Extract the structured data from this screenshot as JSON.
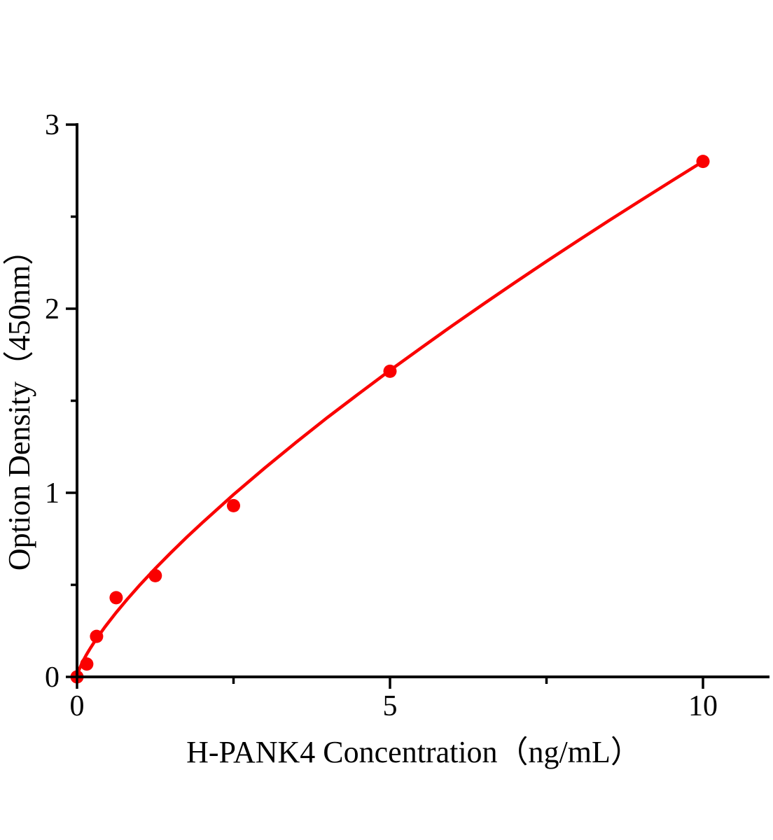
{
  "page": {
    "background_color": "#ffffff",
    "text_color": "#000000"
  },
  "chart_data": {
    "type": "scatter",
    "title": "",
    "xlabel": "H-PANK4 Concentration（ng/mL）",
    "ylabel": "Option Density（450nm）",
    "grid": false,
    "legend": false,
    "x_axis": {
      "lim": [
        0,
        11.06
      ],
      "major_ticks": [
        {
          "value": 0,
          "label": "0"
        },
        {
          "value": 5,
          "label": "5"
        },
        {
          "value": 10,
          "label": "10"
        }
      ],
      "minor_ticks": [
        2.5,
        7.5
      ]
    },
    "y_axis": {
      "lim": [
        0,
        3
      ],
      "major_ticks": [
        {
          "value": 0,
          "label": "0"
        },
        {
          "value": 1,
          "label": "1"
        },
        {
          "value": 2,
          "label": "2"
        },
        {
          "value": 3,
          "label": "3"
        }
      ],
      "minor_ticks": [
        0.5,
        1.5,
        2.5
      ]
    },
    "axis_color": "#000000",
    "series": [
      {
        "color": "#fa0000",
        "marker": "circle",
        "points": [
          [
            0,
            0.0
          ],
          [
            0.156,
            0.07
          ],
          [
            0.312,
            0.22
          ],
          [
            0.625,
            0.43
          ],
          [
            1.25,
            0.55
          ],
          [
            2.5,
            0.93
          ],
          [
            5,
            1.66
          ],
          [
            10,
            2.8
          ]
        ],
        "fit_curve": [
          [
            0,
            0
          ],
          [
            0.01,
            0.016
          ],
          [
            0.02,
            0.027
          ],
          [
            0.03,
            0.036
          ],
          [
            0.05,
            0.053
          ],
          [
            0.07,
            0.068
          ],
          [
            0.1,
            0.089
          ],
          [
            0.15,
            0.12
          ],
          [
            0.2,
            0.149
          ],
          [
            0.3,
            0.202
          ],
          [
            0.45,
            0.273
          ],
          [
            0.625,
            0.35
          ],
          [
            0.8,
            0.421
          ],
          [
            1.0,
            0.498
          ],
          [
            1.25,
            0.589
          ],
          [
            1.5,
            0.675
          ],
          [
            1.75,
            0.758
          ],
          [
            2.0,
            0.837
          ],
          [
            2.5,
            0.99
          ],
          [
            3.0,
            1.135
          ],
          [
            3.5,
            1.274
          ],
          [
            4.0,
            1.409
          ],
          [
            4.5,
            1.538
          ],
          [
            5.0,
            1.665
          ],
          [
            5.5,
            1.788
          ],
          [
            6.0,
            1.909
          ],
          [
            6.5,
            2.027
          ],
          [
            7.0,
            2.143
          ],
          [
            7.5,
            2.257
          ],
          [
            8.0,
            2.369
          ],
          [
            8.5,
            2.479
          ],
          [
            9.0,
            2.587
          ],
          [
            9.5,
            2.694
          ],
          [
            10,
            2.8
          ]
        ]
      }
    ]
  }
}
